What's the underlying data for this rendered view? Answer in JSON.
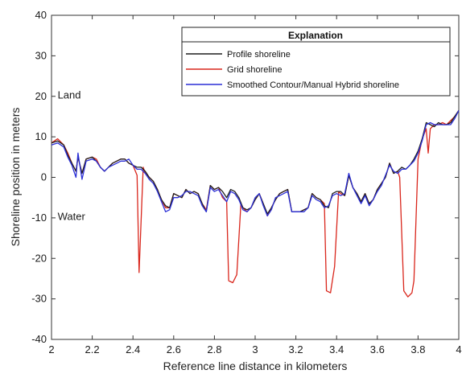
{
  "chart_data": {
    "type": "line",
    "xlabel": "Reference line distance in kilometers",
    "ylabel": "Shoreline position in meters",
    "xlim": [
      2,
      4
    ],
    "ylim": [
      -40,
      40
    ],
    "xticks": [
      2,
      2.2,
      2.4,
      2.6,
      2.8,
      3,
      3.2,
      3.4,
      3.6,
      3.8,
      4
    ],
    "yticks": [
      -40,
      -30,
      -20,
      -10,
      0,
      10,
      20,
      30,
      40
    ],
    "grid": false,
    "legend_title": "Explanation",
    "legend_position": "top-right",
    "annotations": [
      {
        "text": "Land",
        "x": 2.03,
        "y": 19.5
      },
      {
        "text": "Water",
        "x": 2.03,
        "y": -10.5
      }
    ],
    "series": [
      {
        "name": "Profile shoreline",
        "color": "#1f1f1f",
        "points": [
          [
            2.0,
            8.5
          ],
          [
            2.03,
            9.0
          ],
          [
            2.06,
            8.0
          ],
          [
            2.08,
            5.5
          ],
          [
            2.1,
            3.5
          ],
          [
            2.12,
            1.5
          ],
          [
            2.13,
            5.0
          ],
          [
            2.15,
            1.0
          ],
          [
            2.17,
            4.5
          ],
          [
            2.2,
            5.0
          ],
          [
            2.22,
            4.0
          ],
          [
            2.24,
            2.5
          ],
          [
            2.26,
            1.5
          ],
          [
            2.28,
            2.5
          ],
          [
            2.3,
            3.5
          ],
          [
            2.32,
            4.0
          ],
          [
            2.34,
            4.5
          ],
          [
            2.36,
            4.5
          ],
          [
            2.38,
            3.5
          ],
          [
            2.4,
            3.0
          ],
          [
            2.42,
            2.5
          ],
          [
            2.44,
            2.5
          ],
          [
            2.46,
            1.5
          ],
          [
            2.48,
            0.0
          ],
          [
            2.5,
            -1.0
          ],
          [
            2.52,
            -3.0
          ],
          [
            2.54,
            -5.5
          ],
          [
            2.56,
            -7.0
          ],
          [
            2.58,
            -7.5
          ],
          [
            2.6,
            -4.0
          ],
          [
            2.62,
            -4.5
          ],
          [
            2.64,
            -5.0
          ],
          [
            2.66,
            -3.0
          ],
          [
            2.68,
            -4.0
          ],
          [
            2.7,
            -3.5
          ],
          [
            2.72,
            -4.0
          ],
          [
            2.74,
            -6.5
          ],
          [
            2.76,
            -8.5
          ],
          [
            2.78,
            -2.0
          ],
          [
            2.8,
            -3.0
          ],
          [
            2.82,
            -2.5
          ],
          [
            2.84,
            -3.5
          ],
          [
            2.86,
            -5.0
          ],
          [
            2.88,
            -3.0
          ],
          [
            2.9,
            -3.5
          ],
          [
            2.92,
            -5.0
          ],
          [
            2.94,
            -7.5
          ],
          [
            2.96,
            -8.0
          ],
          [
            2.98,
            -7.5
          ],
          [
            3.0,
            -5.5
          ],
          [
            3.02,
            -4.0
          ],
          [
            3.04,
            -6.5
          ],
          [
            3.06,
            -9.0
          ],
          [
            3.08,
            -7.5
          ],
          [
            3.1,
            -5.5
          ],
          [
            3.12,
            -4.0
          ],
          [
            3.14,
            -3.5
          ],
          [
            3.16,
            -3.0
          ],
          [
            3.18,
            -8.5
          ],
          [
            3.2,
            -8.5
          ],
          [
            3.22,
            -8.5
          ],
          [
            3.24,
            -8.0
          ],
          [
            3.26,
            -7.5
          ],
          [
            3.28,
            -4.0
          ],
          [
            3.3,
            -5.0
          ],
          [
            3.32,
            -5.5
          ],
          [
            3.34,
            -7.0
          ],
          [
            3.36,
            -7.5
          ],
          [
            3.38,
            -4.0
          ],
          [
            3.4,
            -3.5
          ],
          [
            3.42,
            -3.5
          ],
          [
            3.44,
            -4.5
          ],
          [
            3.46,
            0.5
          ],
          [
            3.48,
            -2.5
          ],
          [
            3.5,
            -4.0
          ],
          [
            3.52,
            -6.0
          ],
          [
            3.54,
            -4.0
          ],
          [
            3.56,
            -6.5
          ],
          [
            3.58,
            -5.5
          ],
          [
            3.6,
            -3.0
          ],
          [
            3.62,
            -1.5
          ],
          [
            3.64,
            0.0
          ],
          [
            3.66,
            3.5
          ],
          [
            3.68,
            1.0
          ],
          [
            3.7,
            1.5
          ],
          [
            3.72,
            2.5
          ],
          [
            3.74,
            2.0
          ],
          [
            3.76,
            3.0
          ],
          [
            3.78,
            4.5
          ],
          [
            3.8,
            6.5
          ],
          [
            3.82,
            9.5
          ],
          [
            3.84,
            13.5
          ],
          [
            3.86,
            13.0
          ],
          [
            3.88,
            12.5
          ],
          [
            3.9,
            13.5
          ],
          [
            3.92,
            13.0
          ],
          [
            3.94,
            13.0
          ],
          [
            3.96,
            13.5
          ],
          [
            3.98,
            15.0
          ],
          [
            4.0,
            16.5
          ]
        ]
      },
      {
        "name": "Grid shoreline",
        "color": "#d9261c",
        "points": [
          [
            2.0,
            8.5
          ],
          [
            2.03,
            9.5
          ],
          [
            2.06,
            8.0
          ],
          [
            2.08,
            6.0
          ],
          [
            2.1,
            3.5
          ],
          [
            2.12,
            1.5
          ],
          [
            2.13,
            5.0
          ],
          [
            2.15,
            1.0
          ],
          [
            2.17,
            4.5
          ],
          [
            2.2,
            5.0
          ],
          [
            2.22,
            4.5
          ],
          [
            2.24,
            2.5
          ],
          [
            2.26,
            1.5
          ],
          [
            2.28,
            2.5
          ],
          [
            2.3,
            3.5
          ],
          [
            2.32,
            4.0
          ],
          [
            2.34,
            4.5
          ],
          [
            2.36,
            4.5
          ],
          [
            2.38,
            3.5
          ],
          [
            2.4,
            3.0
          ],
          [
            2.42,
            0.5
          ],
          [
            2.43,
            -23.5
          ],
          [
            2.45,
            2.5
          ],
          [
            2.46,
            1.0
          ],
          [
            2.48,
            0.0
          ],
          [
            2.5,
            -1.0
          ],
          [
            2.52,
            -3.0
          ],
          [
            2.54,
            -5.5
          ],
          [
            2.56,
            -7.5
          ],
          [
            2.58,
            -7.5
          ],
          [
            2.6,
            -4.0
          ],
          [
            2.62,
            -4.5
          ],
          [
            2.64,
            -5.0
          ],
          [
            2.66,
            -3.0
          ],
          [
            2.68,
            -4.0
          ],
          [
            2.7,
            -3.5
          ],
          [
            2.72,
            -4.0
          ],
          [
            2.74,
            -6.5
          ],
          [
            2.76,
            -8.0
          ],
          [
            2.78,
            -2.0
          ],
          [
            2.8,
            -3.0
          ],
          [
            2.82,
            -2.5
          ],
          [
            2.84,
            -5.0
          ],
          [
            2.86,
            -6.0
          ],
          [
            2.87,
            -25.5
          ],
          [
            2.89,
            -26.0
          ],
          [
            2.91,
            -24.0
          ],
          [
            2.93,
            -6.5
          ],
          [
            2.94,
            -7.5
          ],
          [
            2.96,
            -8.5
          ],
          [
            2.98,
            -7.5
          ],
          [
            3.0,
            -5.5
          ],
          [
            3.02,
            -4.0
          ],
          [
            3.04,
            -6.5
          ],
          [
            3.06,
            -9.5
          ],
          [
            3.08,
            -7.5
          ],
          [
            3.1,
            -5.5
          ],
          [
            3.12,
            -4.0
          ],
          [
            3.14,
            -3.5
          ],
          [
            3.16,
            -3.0
          ],
          [
            3.18,
            -8.5
          ],
          [
            3.2,
            -8.5
          ],
          [
            3.22,
            -8.5
          ],
          [
            3.24,
            -8.0
          ],
          [
            3.26,
            -7.5
          ],
          [
            3.28,
            -4.0
          ],
          [
            3.3,
            -5.0
          ],
          [
            3.32,
            -5.5
          ],
          [
            3.34,
            -6.5
          ],
          [
            3.35,
            -28.0
          ],
          [
            3.37,
            -28.5
          ],
          [
            3.39,
            -22.0
          ],
          [
            3.41,
            -3.5
          ],
          [
            3.42,
            -4.0
          ],
          [
            3.44,
            -4.5
          ],
          [
            3.46,
            0.5
          ],
          [
            3.48,
            -2.5
          ],
          [
            3.5,
            -4.0
          ],
          [
            3.52,
            -6.0
          ],
          [
            3.54,
            -4.0
          ],
          [
            3.56,
            -6.5
          ],
          [
            3.58,
            -5.5
          ],
          [
            3.6,
            -3.0
          ],
          [
            3.62,
            -1.5
          ],
          [
            3.64,
            0.0
          ],
          [
            3.66,
            3.5
          ],
          [
            3.68,
            1.0
          ],
          [
            3.7,
            1.5
          ],
          [
            3.71,
            0.0
          ],
          [
            3.73,
            -28.0
          ],
          [
            3.75,
            -29.5
          ],
          [
            3.77,
            -28.5
          ],
          [
            3.78,
            -25.5
          ],
          [
            3.8,
            4.5
          ],
          [
            3.82,
            9.5
          ],
          [
            3.84,
            12.0
          ],
          [
            3.85,
            6.0
          ],
          [
            3.86,
            12.0
          ],
          [
            3.88,
            13.0
          ],
          [
            3.9,
            13.0
          ],
          [
            3.92,
            13.5
          ],
          [
            3.94,
            13.0
          ],
          [
            3.96,
            14.0
          ],
          [
            3.98,
            15.0
          ],
          [
            4.0,
            16.5
          ]
        ]
      },
      {
        "name": "Smoothed Contour/Manual Hybrid shoreline",
        "color": "#2b2fd6",
        "points": [
          [
            2.0,
            8.0
          ],
          [
            2.03,
            8.5
          ],
          [
            2.06,
            7.5
          ],
          [
            2.08,
            5.0
          ],
          [
            2.1,
            3.0
          ],
          [
            2.12,
            0.0
          ],
          [
            2.13,
            6.0
          ],
          [
            2.15,
            -0.5
          ],
          [
            2.17,
            4.0
          ],
          [
            2.2,
            4.5
          ],
          [
            2.22,
            4.0
          ],
          [
            2.24,
            2.5
          ],
          [
            2.26,
            1.5
          ],
          [
            2.28,
            2.5
          ],
          [
            2.3,
            3.0
          ],
          [
            2.32,
            3.5
          ],
          [
            2.34,
            4.0
          ],
          [
            2.36,
            4.0
          ],
          [
            2.38,
            4.5
          ],
          [
            2.4,
            3.0
          ],
          [
            2.42,
            2.0
          ],
          [
            2.44,
            2.0
          ],
          [
            2.46,
            1.0
          ],
          [
            2.48,
            -0.5
          ],
          [
            2.5,
            -1.5
          ],
          [
            2.52,
            -3.5
          ],
          [
            2.54,
            -6.0
          ],
          [
            2.56,
            -8.5
          ],
          [
            2.58,
            -8.0
          ],
          [
            2.6,
            -5.0
          ],
          [
            2.62,
            -5.0
          ],
          [
            2.64,
            -4.5
          ],
          [
            2.66,
            -3.5
          ],
          [
            2.68,
            -3.5
          ],
          [
            2.7,
            -4.0
          ],
          [
            2.72,
            -4.5
          ],
          [
            2.74,
            -7.0
          ],
          [
            2.76,
            -8.5
          ],
          [
            2.78,
            -2.5
          ],
          [
            2.8,
            -3.5
          ],
          [
            2.82,
            -3.0
          ],
          [
            2.84,
            -4.5
          ],
          [
            2.86,
            -6.0
          ],
          [
            2.88,
            -3.5
          ],
          [
            2.9,
            -4.0
          ],
          [
            2.92,
            -5.5
          ],
          [
            2.94,
            -8.0
          ],
          [
            2.96,
            -8.5
          ],
          [
            2.98,
            -7.5
          ],
          [
            3.0,
            -5.0
          ],
          [
            3.02,
            -4.0
          ],
          [
            3.04,
            -7.0
          ],
          [
            3.06,
            -9.5
          ],
          [
            3.08,
            -8.0
          ],
          [
            3.1,
            -5.0
          ],
          [
            3.12,
            -4.5
          ],
          [
            3.14,
            -4.0
          ],
          [
            3.16,
            -3.5
          ],
          [
            3.18,
            -8.5
          ],
          [
            3.2,
            -8.5
          ],
          [
            3.22,
            -8.5
          ],
          [
            3.24,
            -8.5
          ],
          [
            3.26,
            -7.5
          ],
          [
            3.28,
            -4.5
          ],
          [
            3.3,
            -5.5
          ],
          [
            3.32,
            -6.0
          ],
          [
            3.34,
            -7.5
          ],
          [
            3.36,
            -7.0
          ],
          [
            3.38,
            -4.5
          ],
          [
            3.4,
            -4.0
          ],
          [
            3.42,
            -4.5
          ],
          [
            3.44,
            -4.0
          ],
          [
            3.46,
            1.0
          ],
          [
            3.48,
            -2.5
          ],
          [
            3.5,
            -4.5
          ],
          [
            3.52,
            -6.5
          ],
          [
            3.54,
            -4.5
          ],
          [
            3.56,
            -7.0
          ],
          [
            3.58,
            -5.5
          ],
          [
            3.6,
            -3.5
          ],
          [
            3.62,
            -2.0
          ],
          [
            3.64,
            0.5
          ],
          [
            3.66,
            3.0
          ],
          [
            3.68,
            1.5
          ],
          [
            3.7,
            1.0
          ],
          [
            3.72,
            2.0
          ],
          [
            3.74,
            2.0
          ],
          [
            3.76,
            3.0
          ],
          [
            3.78,
            4.0
          ],
          [
            3.8,
            6.0
          ],
          [
            3.82,
            9.0
          ],
          [
            3.84,
            13.0
          ],
          [
            3.86,
            13.5
          ],
          [
            3.88,
            13.0
          ],
          [
            3.9,
            13.0
          ],
          [
            3.92,
            13.0
          ],
          [
            3.94,
            13.0
          ],
          [
            3.96,
            13.0
          ],
          [
            3.98,
            14.5
          ],
          [
            4.0,
            16.5
          ]
        ]
      }
    ]
  }
}
